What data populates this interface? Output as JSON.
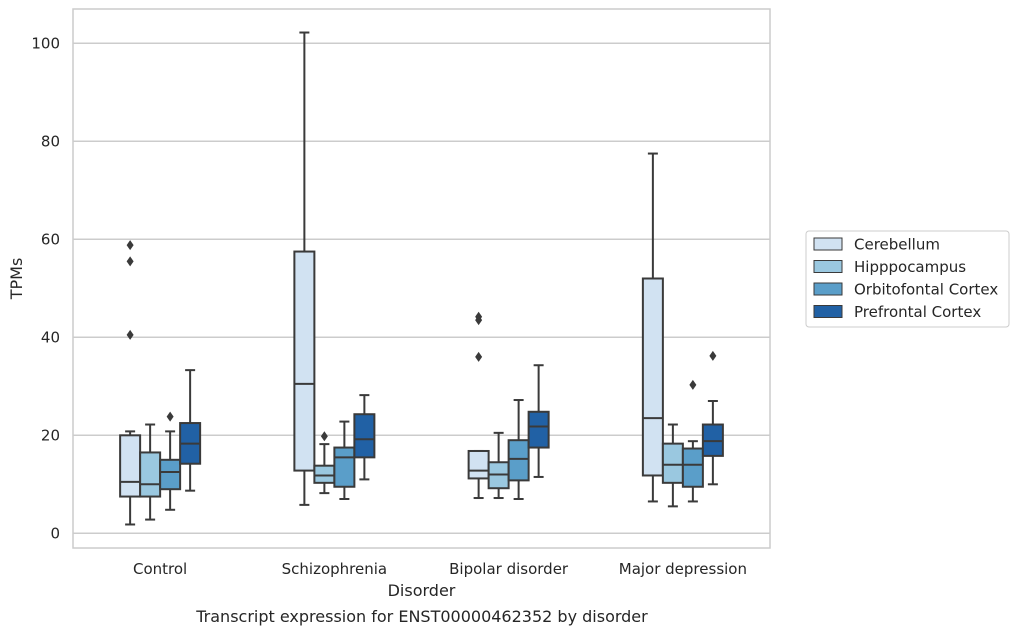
{
  "chart_data": {
    "type": "boxplot",
    "caption": "Transcript expression for ENST00000462352 by disorder",
    "xlabel": "Disorder",
    "ylabel": "TPMs",
    "ylim": [
      -3,
      107
    ],
    "yticks": [
      0,
      20,
      40,
      60,
      80,
      100
    ],
    "grid": true,
    "legend_placement": "right",
    "categories": [
      "Control",
      "Schizophrenia",
      "Bipolar disorder",
      "Major depression"
    ],
    "series": [
      {
        "name": "Cerebellum",
        "color": "#d1e2f2",
        "boxes": [
          {
            "whislo": 1.8,
            "q1": 7.5,
            "med": 10.5,
            "q3": 20.0,
            "whishi": 20.8,
            "fliers": [
              40.5,
              55.5,
              58.8
            ]
          },
          {
            "whislo": 5.8,
            "q1": 12.8,
            "med": 30.5,
            "q3": 57.5,
            "whishi": 102.2,
            "fliers": []
          },
          {
            "whislo": 7.2,
            "q1": 11.2,
            "med": 12.8,
            "q3": 16.8,
            "whishi": 16.8,
            "fliers": [
              36.0,
              43.5,
              44.2
            ]
          },
          {
            "whislo": 6.5,
            "q1": 11.8,
            "med": 23.5,
            "q3": 52.0,
            "whishi": 77.5,
            "fliers": []
          }
        ]
      },
      {
        "name": "Hipppocampus",
        "color": "#9ac8e0",
        "boxes": [
          {
            "whislo": 2.8,
            "q1": 7.5,
            "med": 10.0,
            "q3": 16.5,
            "whishi": 22.2,
            "fliers": []
          },
          {
            "whislo": 8.2,
            "q1": 10.3,
            "med": 11.8,
            "q3": 13.8,
            "whishi": 18.2,
            "fliers": [
              19.8
            ]
          },
          {
            "whislo": 7.2,
            "q1": 9.2,
            "med": 12.0,
            "q3": 14.5,
            "whishi": 20.5,
            "fliers": []
          },
          {
            "whislo": 5.5,
            "q1": 10.3,
            "med": 14.0,
            "q3": 18.3,
            "whishi": 22.2,
            "fliers": []
          }
        ]
      },
      {
        "name": "Orbitofontal Cortex",
        "color": "#5a9ec9",
        "boxes": [
          {
            "whislo": 4.8,
            "q1": 9.0,
            "med": 12.5,
            "q3": 15.0,
            "whishi": 20.8,
            "fliers": [
              23.8
            ]
          },
          {
            "whislo": 7.0,
            "q1": 9.5,
            "med": 15.5,
            "q3": 17.5,
            "whishi": 22.8,
            "fliers": []
          },
          {
            "whislo": 7.0,
            "q1": 10.8,
            "med": 15.2,
            "q3": 19.0,
            "whishi": 27.2,
            "fliers": []
          },
          {
            "whislo": 6.5,
            "q1": 9.5,
            "med": 14.0,
            "q3": 17.3,
            "whishi": 18.8,
            "fliers": [
              30.3
            ]
          }
        ]
      },
      {
        "name": "Prefrontal Cortex",
        "color": "#2161a5",
        "boxes": [
          {
            "whislo": 8.7,
            "q1": 14.2,
            "med": 18.3,
            "q3": 22.5,
            "whishi": 33.3,
            "fliers": []
          },
          {
            "whislo": 11.0,
            "q1": 15.5,
            "med": 19.2,
            "q3": 24.3,
            "whishi": 28.2,
            "fliers": []
          },
          {
            "whislo": 11.5,
            "q1": 17.5,
            "med": 21.8,
            "q3": 24.8,
            "whishi": 34.3,
            "fliers": []
          },
          {
            "whislo": 10.0,
            "q1": 15.8,
            "med": 18.8,
            "q3": 22.2,
            "whishi": 27.0,
            "fliers": [
              36.2
            ]
          }
        ]
      }
    ]
  }
}
